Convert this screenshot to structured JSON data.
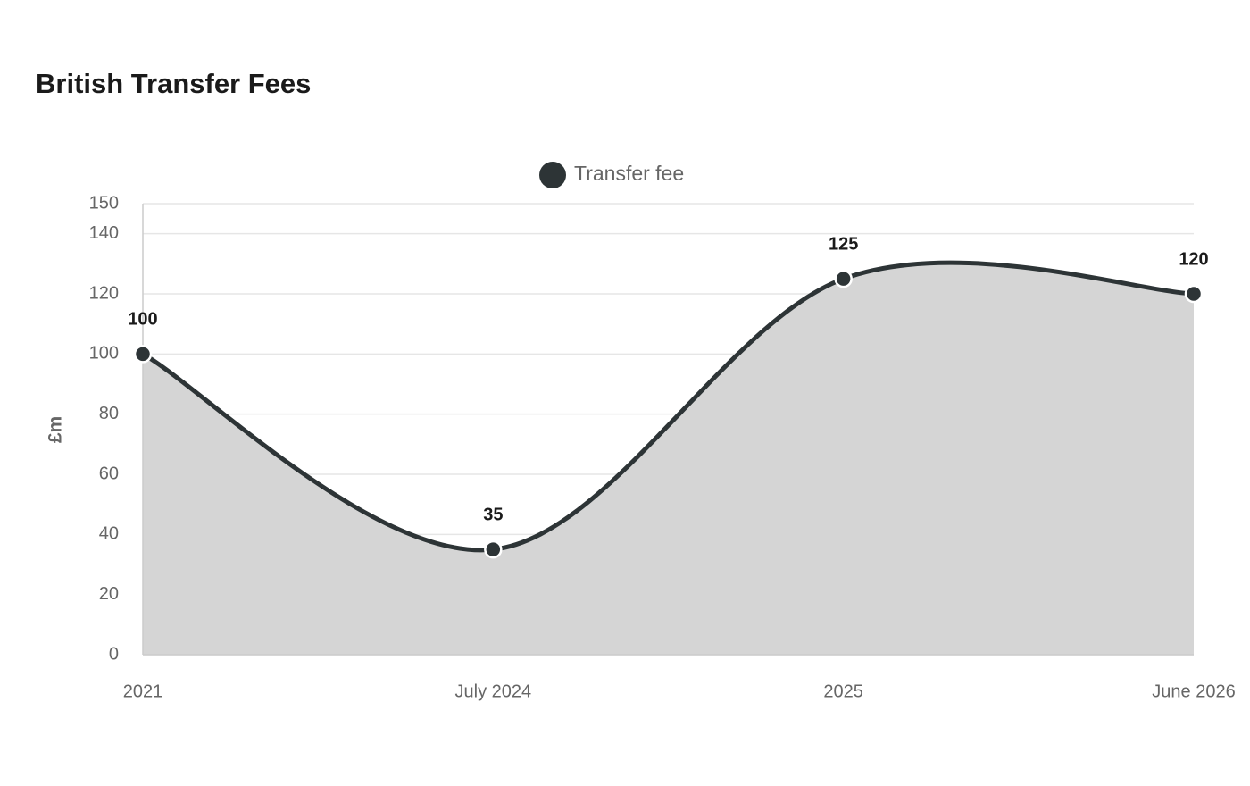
{
  "chart_data": {
    "type": "area",
    "title": "British Transfer Fees",
    "y_label": "£m",
    "categories": [
      "2021",
      "July 2024",
      "2025",
      "June 2026"
    ],
    "series": [
      {
        "name": "Transfer fee",
        "color": "#2d3436",
        "values": [
          100,
          35,
          125,
          120
        ]
      }
    ],
    "ylim": [
      0,
      150
    ],
    "yticks": [
      0,
      20,
      40,
      60,
      80,
      100,
      120,
      140,
      150
    ],
    "grid": true,
    "legend": "top",
    "fill_color": "#d5d5d5"
  }
}
